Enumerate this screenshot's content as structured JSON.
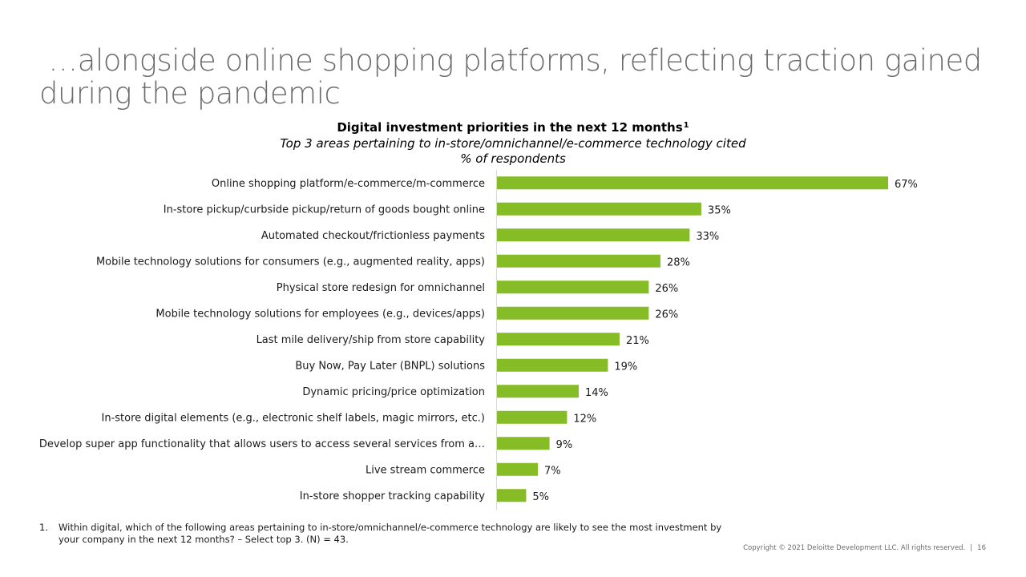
{
  "slide": {
    "title": " …alongside online shopping platforms, reflecting traction gained during the pandemic",
    "footnote_number": "1.",
    "footnote_text": "Within digital, which of the following areas pertaining to in-store/omnichannel/e-commerce technology are likely to see the most investment by your company in the next 12 months? – Select top 3. (N) = 43.",
    "copyright": "Copyright © 2021 Deloitte Development LLC. All rights reserved.",
    "separator": "|",
    "page_number": "16"
  },
  "chart_data": {
    "type": "bar",
    "orientation": "horizontal",
    "title": "Digital investment priorities in the next 12 months",
    "title_superscript": "1",
    "subtitle": "Top 3 areas pertaining to in-store/omnichannel/e-commerce technology cited",
    "unit_label": "% of respondents",
    "value_suffix": "%",
    "bar_color": "#86bc25",
    "xlim": [
      0,
      100
    ],
    "grid": false,
    "legend": "none",
    "categories": [
      "Online shopping platform/e-commerce/m-commerce",
      "In-store pickup/curbside pickup/return of goods bought online",
      "Automated checkout/frictionless payments",
      "Mobile technology solutions for consumers (e.g., augmented reality, apps)",
      "Physical store redesign for omnichannel",
      "Mobile technology solutions for employees (e.g., devices/apps)",
      "Last mile delivery/ship from store capability",
      "Buy Now, Pay Later (BNPL) solutions",
      "Dynamic pricing/price optimization",
      "In-store digital elements (e.g., electronic shelf labels, magic mirrors, etc.)",
      "Develop super app functionality that allows users to access several services from a…",
      "Live stream commerce",
      "In-store shopper tracking capability"
    ],
    "values": [
      67,
      35,
      33,
      28,
      26,
      26,
      21,
      19,
      14,
      12,
      9,
      7,
      5
    ]
  }
}
